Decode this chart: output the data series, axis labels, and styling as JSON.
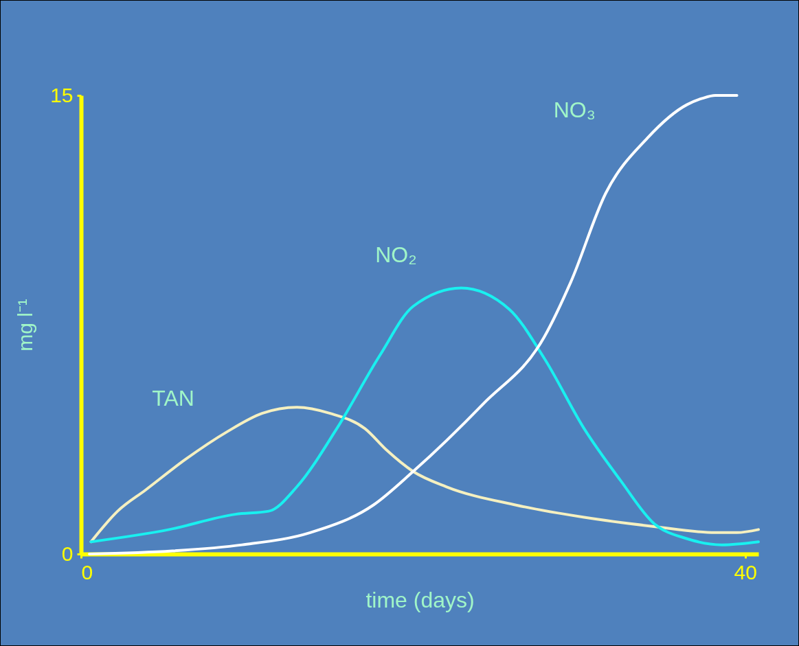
{
  "chart_data": {
    "type": "line",
    "xlabel": "time (days)",
    "ylabel": "mg l⁻¹",
    "xlim": [
      0,
      40.8
    ],
    "ylim": [
      0,
      15
    ],
    "xticks": [
      0,
      40
    ],
    "yticks": [
      0,
      15
    ],
    "series": [
      {
        "name": "TAN",
        "color": "#f5f0c0",
        "x": [
          0.6,
          2.2,
          3.9,
          6.3,
          8.8,
          10.9,
          13.0,
          15.0,
          17.1,
          18.4,
          20.0,
          22.0,
          26.2,
          30.3,
          34.5,
          38.2,
          39.5,
          40.8
        ],
        "values": [
          0.4,
          1.4,
          2.1,
          3.1,
          4.0,
          4.6,
          4.8,
          4.6,
          4.1,
          3.4,
          2.7,
          2.2,
          1.6,
          1.2,
          0.9,
          0.7,
          0.7,
          0.8
        ]
      },
      {
        "name": "NO₂",
        "color": "#19f0f0",
        "x": [
          0.6,
          5.3,
          9.3,
          11.3,
          13.0,
          15.4,
          18.0,
          20.0,
          22.9,
          25.8,
          27.9,
          30.3,
          32.5,
          34.5,
          36.5,
          38.6,
          40.8
        ],
        "values": [
          0.4,
          0.8,
          1.3,
          1.4,
          2.2,
          4.1,
          6.5,
          8.1,
          8.7,
          8.0,
          6.4,
          4.1,
          2.4,
          1.0,
          0.5,
          0.3,
          0.4
        ]
      },
      {
        "name": "NO₃",
        "color": "#ffffff",
        "x": [
          0.5,
          5.5,
          9.7,
          13.8,
          17.6,
          20.0,
          24.2,
          27.9,
          29.5,
          31.6,
          34.1,
          36.5,
          37.4,
          38.2,
          39.5
        ],
        "values": [
          0,
          0.1,
          0.3,
          0.7,
          1.6,
          2.7,
          4.9,
          7.1,
          8.9,
          11.8,
          13.6,
          14.7,
          14.9,
          15,
          15
        ]
      }
    ]
  }
}
